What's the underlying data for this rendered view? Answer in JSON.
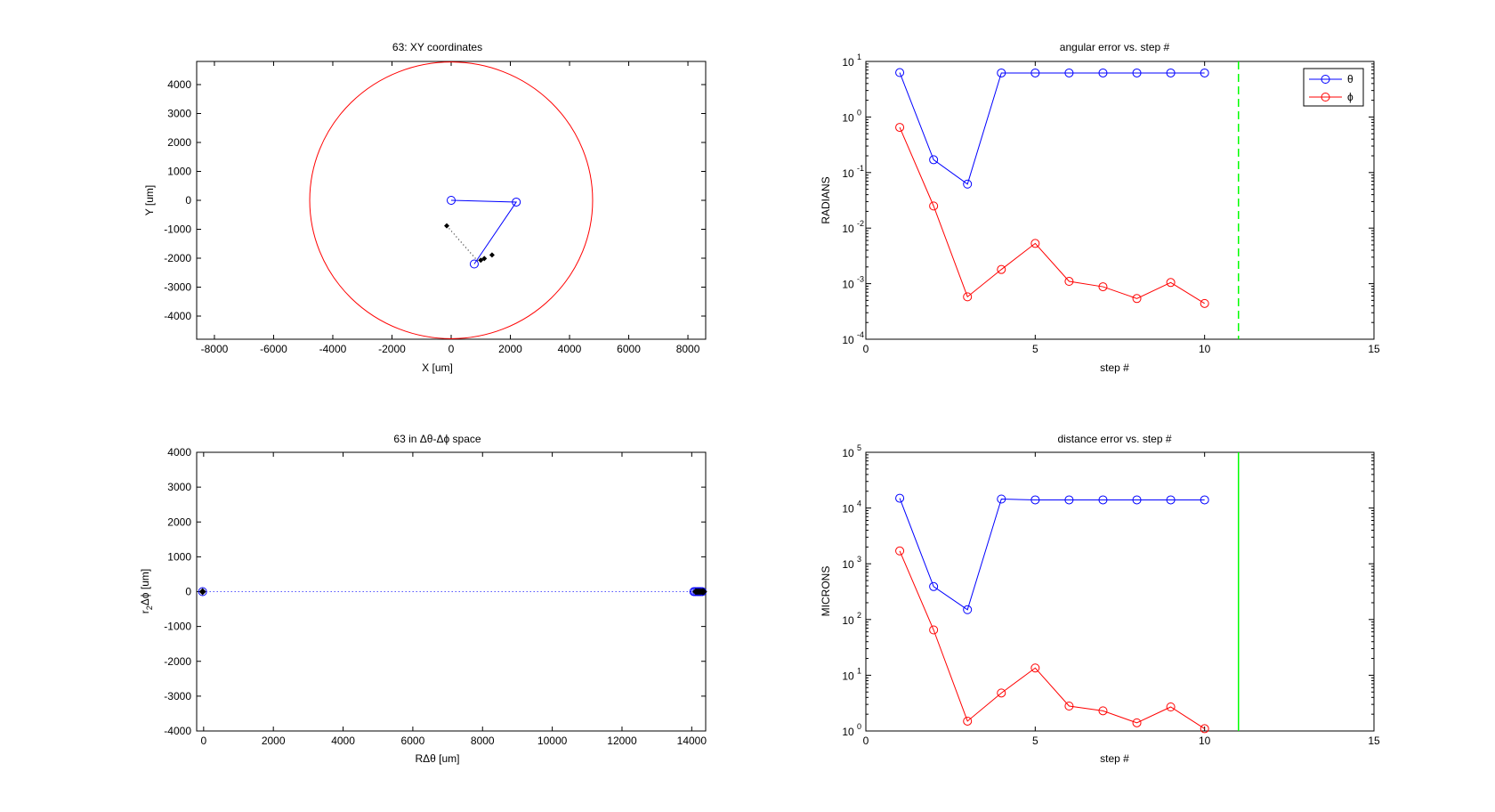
{
  "figure": {
    "background": "#ffffff"
  },
  "chart_data": [
    {
      "id": "xy",
      "type": "line",
      "title": "63: XY coordinates",
      "xlabel": "X [um]",
      "ylabel": "Y [um]",
      "xlim": [
        -8600,
        8600
      ],
      "ylim": [
        -4800,
        4800
      ],
      "xticks": [
        -8000,
        -6000,
        -4000,
        -2000,
        0,
        2000,
        4000,
        6000,
        8000
      ],
      "yticks": [
        -4000,
        -3000,
        -2000,
        -1000,
        0,
        1000,
        2000,
        3000,
        4000
      ],
      "circle": {
        "cx": 0,
        "cy": 0,
        "r": 4780,
        "color": "#ff0000"
      },
      "arm": {
        "points": [
          [
            0,
            0
          ],
          [
            2200,
            -60
          ],
          [
            780,
            -2200
          ]
        ],
        "color": "#0000ff"
      },
      "target_path": {
        "points": [
          [
            -150,
            -880
          ],
          [
            900,
            -2100
          ]
        ],
        "color": "#000000",
        "style": "dotted"
      },
      "target_markers": [
        [
          -150,
          -880
        ],
        [
          1000,
          -2070
        ],
        [
          1120,
          -2010
        ],
        [
          1380,
          -1890
        ]
      ],
      "grid": false
    },
    {
      "id": "angular",
      "type": "line",
      "title": "angular error vs. step #",
      "xlabel": "step #",
      "ylabel": "RADIANS",
      "yscale": "log",
      "xlim": [
        0,
        15
      ],
      "ylim_exp": [
        -4,
        1
      ],
      "xticks": [
        0,
        5,
        10,
        15
      ],
      "yticks_exp": [
        -4,
        -3,
        -2,
        -1,
        0,
        1
      ],
      "vline": {
        "x": 11,
        "color": "#00ff00",
        "style": "dashed"
      },
      "legend": {
        "position": "top-right",
        "entries": [
          "θ",
          "ϕ"
        ]
      },
      "series": [
        {
          "name": "θ",
          "color": "#0000ff",
          "x": [
            1,
            2,
            3,
            4,
            5,
            6,
            7,
            8,
            9,
            10
          ],
          "values": [
            6.3,
            0.17,
            0.062,
            6.2,
            6.2,
            6.2,
            6.2,
            6.2,
            6.2,
            6.2
          ]
        },
        {
          "name": "ϕ",
          "color": "#ff0000",
          "x": [
            1,
            2,
            3,
            4,
            5,
            6,
            7,
            8,
            9,
            10
          ],
          "values": [
            0.65,
            0.025,
            0.00058,
            0.0018,
            0.0053,
            0.0011,
            0.00088,
            0.00054,
            0.00105,
            0.00044
          ]
        }
      ],
      "grid": false
    },
    {
      "id": "dtheta",
      "type": "scatter",
      "title": "63 in Δθ-Δϕ space",
      "xlabel": "RΔθ [um]",
      "ylabel_main": "r",
      "ylabel_sub": "2",
      "ylabel_rest": "Δϕ [um]",
      "xlim": [
        -200,
        14400
      ],
      "ylim": [
        -4000,
        4000
      ],
      "xticks": [
        0,
        2000,
        4000,
        6000,
        8000,
        10000,
        12000,
        14000
      ],
      "yticks": [
        -4000,
        -3000,
        -2000,
        -1000,
        0,
        1000,
        2000,
        3000,
        4000
      ],
      "line": {
        "points": [
          [
            -30,
            0
          ],
          [
            14300,
            0
          ]
        ],
        "color": "#0000ff",
        "style": "dotted"
      },
      "blue_markers": [
        [
          -30,
          0
        ],
        [
          14060,
          0
        ],
        [
          14100,
          0
        ],
        [
          14150,
          0
        ],
        [
          14200,
          0
        ],
        [
          14250,
          0
        ],
        [
          14300,
          0
        ]
      ],
      "black_markers": [
        [
          -30,
          0
        ],
        [
          14120,
          0
        ],
        [
          14180,
          0
        ],
        [
          14240,
          0
        ],
        [
          14300,
          0
        ],
        [
          14340,
          0
        ]
      ],
      "grid": false
    },
    {
      "id": "distance",
      "type": "line",
      "title": "distance error vs. step #",
      "xlabel": "step #",
      "ylabel": "MICRONS",
      "yscale": "log",
      "xlim": [
        0,
        15
      ],
      "ylim_exp": [
        0,
        5
      ],
      "xticks": [
        0,
        5,
        10,
        15
      ],
      "yticks_exp": [
        0,
        1,
        2,
        3,
        4,
        5
      ],
      "vline": {
        "x": 11,
        "color": "#00ff00",
        "style": "solid"
      },
      "series": [
        {
          "name": "",
          "color": "#0000ff",
          "x": [
            1,
            2,
            3,
            4,
            5,
            6,
            7,
            8,
            9,
            10
          ],
          "values": [
            15000,
            390,
            150,
            14500,
            14000,
            14000,
            14000,
            14000,
            14000,
            14000
          ]
        },
        {
          "name": "",
          "color": "#ff0000",
          "x": [
            1,
            2,
            3,
            4,
            5,
            6,
            7,
            8,
            9,
            10
          ],
          "values": [
            1700,
            65,
            1.5,
            4.8,
            13.5,
            2.8,
            2.3,
            1.4,
            2.7,
            1.1
          ]
        }
      ],
      "grid": false
    }
  ]
}
